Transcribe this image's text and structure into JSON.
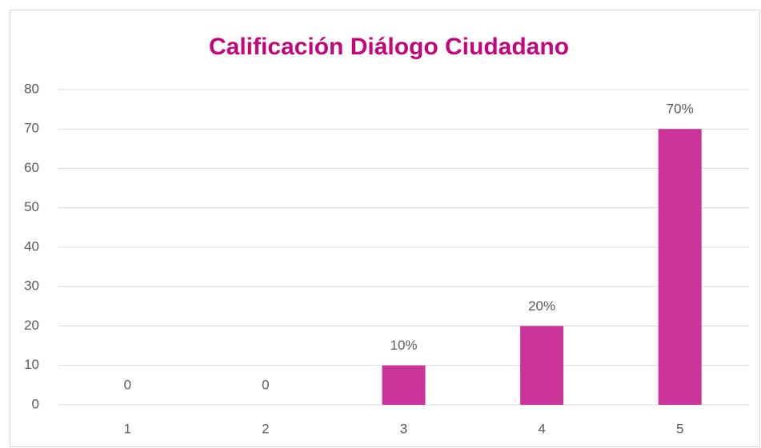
{
  "chart_data": {
    "type": "bar",
    "title": "Calificación Diálogo Ciudadano",
    "categories": [
      "1",
      "2",
      "3",
      "4",
      "5"
    ],
    "values": [
      0,
      0,
      10,
      20,
      70
    ],
    "value_labels": [
      "0",
      "0",
      "10%",
      "20%",
      "70%"
    ],
    "color": "#c9339a",
    "ylim": [
      0,
      80
    ],
    "yticks": [
      0,
      10,
      20,
      30,
      40,
      50,
      60,
      70,
      80
    ],
    "grid": true
  }
}
